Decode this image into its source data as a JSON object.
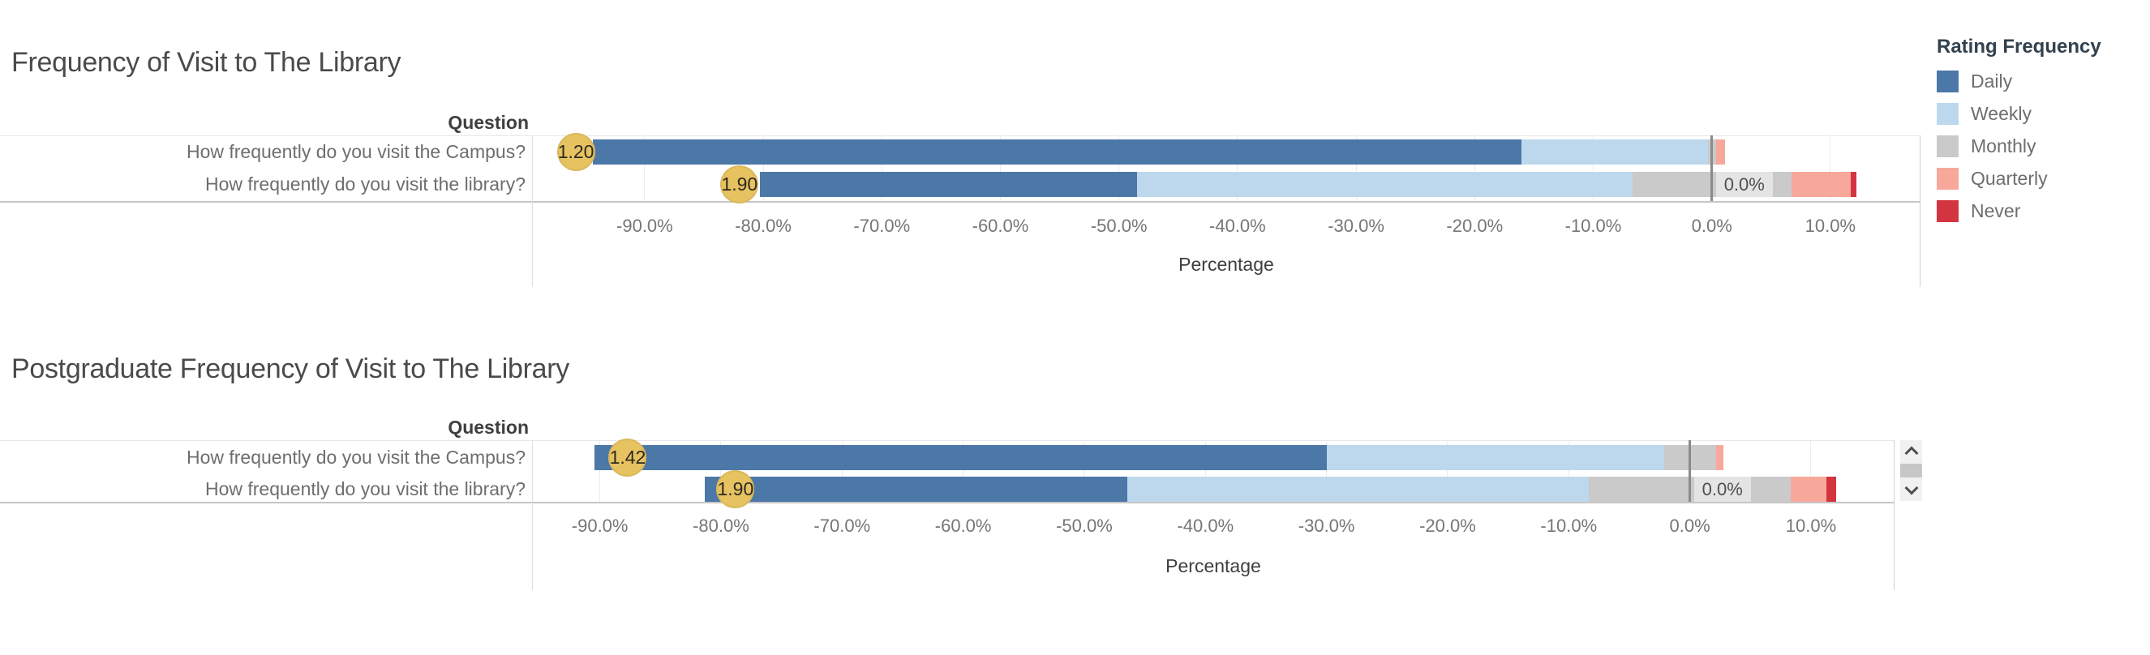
{
  "page": {
    "background": "#ffffff"
  },
  "legend": {
    "title": "Rating Frequency",
    "position": "right"
  },
  "chart_data": [
    {
      "type": "bar",
      "variant": "diverging_stacked_horizontal",
      "title": "Frequency of Visit to The Library",
      "row_header": "Question",
      "categories": [
        "How frequently do you visit the Campus?",
        "How frequently do you visit the library?"
      ],
      "series": [
        {
          "name": "Daily",
          "color": "#4c78a8",
          "values": [
            78.3,
            31.8
          ]
        },
        {
          "name": "Weekly",
          "color": "#bdd8ec",
          "values": [
            15.7,
            41.8
          ]
        },
        {
          "name": "Monthly",
          "color": "#cacaca",
          "values": [
            0.7,
            13.4
          ]
        },
        {
          "name": "Quarterly",
          "color": "#f8a79b",
          "values": [
            0.8,
            5.0
          ]
        },
        {
          "name": "Never",
          "color": "#d2353f",
          "values": [
            0.0,
            0.5
          ]
        }
      ],
      "center_rule": "Monthly segment centered on 0",
      "mean_markers": {
        "color": "#e6c260",
        "labels": [
          "1.20",
          "1.90"
        ],
        "positions_pct": [
          -95.8,
          -82.0
        ]
      },
      "bar_annotations": [
        null,
        {
          "text": "0.0%",
          "at_pct": 0
        }
      ],
      "xlabel": "Percentage",
      "xlim": [
        -99.5,
        17.6
      ],
      "xticks": [
        {
          "value": -90,
          "label": "-90.0%"
        },
        {
          "value": -80,
          "label": "-80.0%"
        },
        {
          "value": -70,
          "label": "-70.0%"
        },
        {
          "value": -60,
          "label": "-60.0%"
        },
        {
          "value": -50,
          "label": "-50.0%"
        },
        {
          "value": -40,
          "label": "-40.0%"
        },
        {
          "value": -30,
          "label": "-30.0%"
        },
        {
          "value": -20,
          "label": "-20.0%"
        },
        {
          "value": -10,
          "label": "-10.0%"
        },
        {
          "value": 0,
          "label": "0.0%"
        },
        {
          "value": 10,
          "label": "10.0%"
        }
      ],
      "legend_title": "Rating Frequency",
      "grid": true,
      "zero_line": true
    },
    {
      "type": "bar",
      "variant": "diverging_stacked_horizontal",
      "title": "Postgraduate Frequency of Visit to The Library",
      "row_header": "Question",
      "categories": [
        "How frequently do you visit the Campus?",
        "How frequently do you visit the library?"
      ],
      "series": [
        {
          "name": "Daily",
          "color": "#4c78a8",
          "values": [
            60.5,
            34.9
          ]
        },
        {
          "name": "Weekly",
          "color": "#bdd8ec",
          "values": [
            27.8,
            38.1
          ]
        },
        {
          "name": "Monthly",
          "color": "#cacaca",
          "values": [
            4.3,
            16.7
          ]
        },
        {
          "name": "Quarterly",
          "color": "#f8a79b",
          "values": [
            0.6,
            2.9
          ]
        },
        {
          "name": "Never",
          "color": "#d2353f",
          "values": [
            0.0,
            0.8
          ]
        }
      ],
      "center_rule": "Monthly segment centered on 0",
      "mean_markers": {
        "color": "#e6c260",
        "labels": [
          "1.42",
          "1.90"
        ],
        "positions_pct": [
          -87.7,
          -78.8
        ]
      },
      "bar_annotations": [
        null,
        {
          "text": "0.0%",
          "at_pct": 0
        }
      ],
      "xlabel": "Percentage",
      "xlim": [
        -95.6,
        16.9
      ],
      "xticks": [
        {
          "value": -90,
          "label": "-90.0%"
        },
        {
          "value": -80,
          "label": "-80.0%"
        },
        {
          "value": -70,
          "label": "-70.0%"
        },
        {
          "value": -60,
          "label": "-60.0%"
        },
        {
          "value": -50,
          "label": "-50.0%"
        },
        {
          "value": -40,
          "label": "-40.0%"
        },
        {
          "value": -30,
          "label": "-30.0%"
        },
        {
          "value": -20,
          "label": "-20.0%"
        },
        {
          "value": -10,
          "label": "-10.0%"
        },
        {
          "value": 0,
          "label": "0.0%"
        },
        {
          "value": 10,
          "label": "10.0%"
        }
      ],
      "legend_title": "Rating Frequency",
      "grid": true,
      "zero_line": true
    }
  ]
}
